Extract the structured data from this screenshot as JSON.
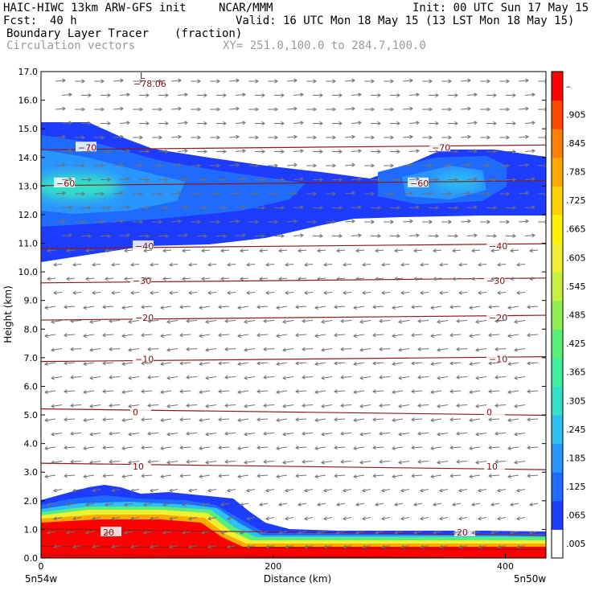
{
  "header": {
    "model": "HAIC-HIWC 13km ARW-GFS init",
    "org": "NCAR/MMM",
    "init": "Init: 00 UTC Sun 17 May 15",
    "fcst_label": "Fcst:",
    "fcst_value": "40 h",
    "valid": "Valid: 16 UTC Mon 18 May 15 (13 LST Mon 18 May 15)",
    "field": "Boundary Layer Tracer",
    "field_units": "(fraction)",
    "vectors": "Circulation vectors",
    "xy": "XY= 251.0,100.0 to 284.7,100.0"
  },
  "chart_data": {
    "type": "heatmap",
    "title": "Boundary Layer Tracer",
    "xlabel": "Distance (km)",
    "ylabel": "Height (km)",
    "xlim": [
      0,
      435
    ],
    "ylim": [
      0.0,
      17.0
    ],
    "x_ticks": [
      "0",
      "200",
      "400"
    ],
    "y_ticks": [
      "0.0",
      "1.0",
      "2.0",
      "3.0",
      "4.0",
      "5.0",
      "6.0",
      "7.0",
      "8.0",
      "9.0",
      "10.0",
      "11.0",
      "12.0",
      "13.0",
      "14.0",
      "15.0",
      "16.0",
      "17.0"
    ],
    "x_end_labels": {
      "left": "5n54w",
      "right": "5n50w"
    },
    "colorbar": {
      "labels": [
        ".005",
        ".065",
        ".125",
        ".185",
        ".245",
        ".305",
        ".365",
        ".425",
        ".485",
        ".545",
        ".605",
        ".665",
        ".725",
        ".785",
        ".845",
        ".905",
        "–"
      ],
      "colors": [
        "#ffffff",
        "#1e3cff",
        "#1f6bff",
        "#2a95ff",
        "#2ec0f0",
        "#36e0c8",
        "#3ef0a0",
        "#5af078",
        "#90f050",
        "#c8f040",
        "#f0f030",
        "#fff000",
        "#ffd000",
        "#ffa800",
        "#ff8000",
        "#ff4800",
        "#ff0000"
      ]
    },
    "temperature_contours": [
      {
        "label": "20",
        "height_km": 0.9
      },
      {
        "label": "10",
        "height_km": 3.2
      },
      {
        "label": "0",
        "height_km": 5.1
      },
      {
        "label": "−10",
        "height_km": 6.95
      },
      {
        "label": "−20",
        "height_km": 8.4
      },
      {
        "label": "−30",
        "height_km": 9.7
      },
      {
        "label": "−40",
        "height_km": 10.9
      },
      {
        "label": "−60",
        "height_km": 13.1
      },
      {
        "label": "−70",
        "height_km": 14.35
      }
    ],
    "minimum_label": {
      "marker": "L",
      "value": "−78.06"
    },
    "tracer_regions": [
      {
        "name": "boundary layer",
        "height_km": [
          0.0,
          2.5
        ],
        "max_fraction": 0.9
      },
      {
        "name": "upper plume",
        "height_km": [
          10.4,
          15.2
        ],
        "max_fraction": 0.4
      }
    ]
  }
}
